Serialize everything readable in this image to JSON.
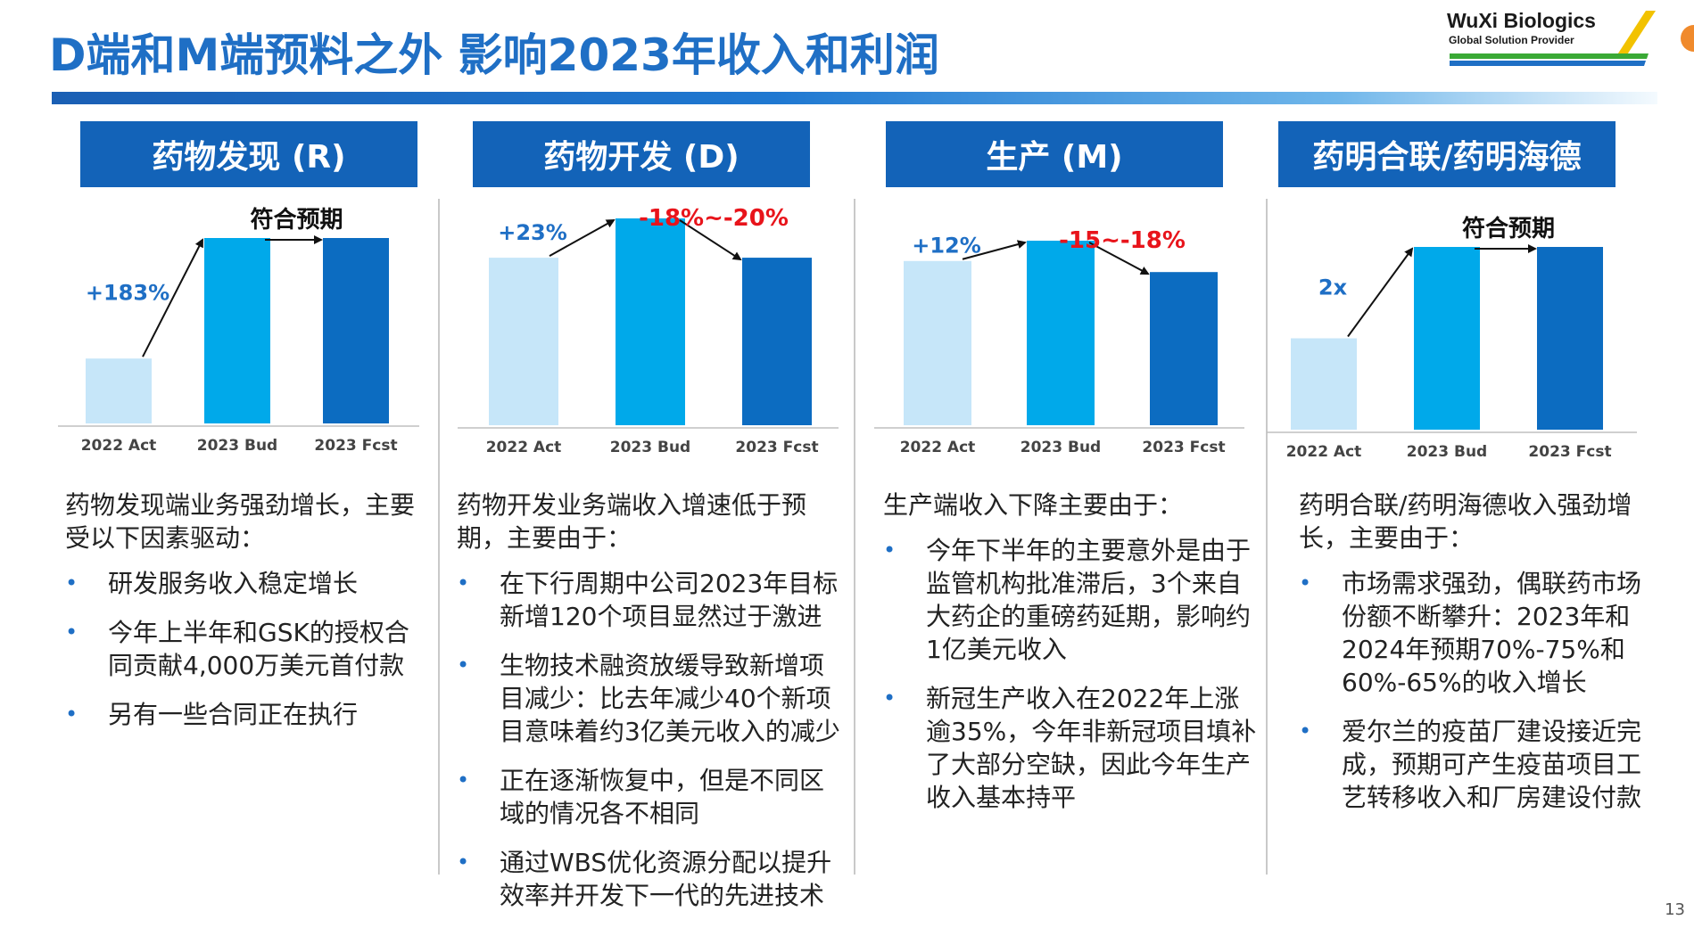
{
  "title": "D端和M端预料之外   影响2023年收入和利润",
  "logo": {
    "name": "WuXi Biologics",
    "tagline": "Global Solution Provider"
  },
  "page_number": "13",
  "colors": {
    "accent": "#1363b8",
    "bar_act": "#c6e6f9",
    "bar_bud": "#00a9ea",
    "bar_fcst": "#0c6cc1",
    "negative": "#e8141b",
    "positive": "#1f6fc5"
  },
  "panels": [
    {
      "header": "药物发现 (R)",
      "change1": "+183%",
      "change2": "符合预期",
      "description": {
        "lead": "药物发现端业务强劲增长，主要受以下因素驱动：",
        "bullets": [
          "研发服务收入稳定增长",
          "今年上半年和GSK的授权合同贡献4,000万美元首付款",
          "另有一些合同正在执行"
        ]
      }
    },
    {
      "header": "药物开发 (D)",
      "change1": "+23%",
      "change2": "-18%~-20%",
      "description": {
        "lead": "药物开发业务端收入增速低于预期，主要由于：",
        "bullets": [
          "在下行周期中公司2023年目标新增120个项目显然过于激进",
          "生物技术融资放缓导致新增项目减少：比去年减少40个新项目意味着约3亿美元收入的减少",
          "正在逐渐恢复中，但是不同区域的情况各不相同",
          "通过WBS优化资源分配以提升效率并开发下一代的先进技术"
        ]
      }
    },
    {
      "header": "生产 (M)",
      "change1": "+12%",
      "change2": "-15~-18%",
      "description": {
        "lead": "生产端收入下降主要由于：",
        "bullets": [
          "今年下半年的主要意外是由于监管机构批准滞后，3个来自大药企的重磅药延期，影响约1亿美元收入",
          "新冠生产收入在2022年上涨逾35%，今年非新冠项目填补了大部分空缺，因此今年生产收入基本持平"
        ]
      }
    },
    {
      "header": "药明合联/药明海德",
      "change1": "2x",
      "change2": "符合预期",
      "description": {
        "lead": "药明合联/药明海德收入强劲增长，主要由于：",
        "bullets": [
          "市场需求强劲，偶联药市场份额不断攀升：2023年和2024年预期70%-75%和60%-65%的收入增长",
          "爱尔兰的疫苗厂建设接近完成，预期可产生疫苗项目工艺转移收入和厂房建设付款"
        ]
      }
    }
  ],
  "chart_data": [
    {
      "type": "bar",
      "categories": [
        "2022 Act",
        "2023 Bud",
        "2023 Fcst"
      ],
      "values": [
        35,
        100,
        100
      ],
      "ylim": [
        0,
        100
      ]
    },
    {
      "type": "bar",
      "categories": [
        "2022 Act",
        "2023 Bud",
        "2023 Fcst"
      ],
      "values": [
        81,
        100,
        81
      ],
      "ylim": [
        0,
        100
      ]
    },
    {
      "type": "bar",
      "categories": [
        "2022 Act",
        "2023 Bud",
        "2023 Fcst"
      ],
      "values": [
        89,
        100,
        83
      ],
      "ylim": [
        0,
        100
      ]
    },
    {
      "type": "bar",
      "categories": [
        "2022 Act",
        "2023 Bud",
        "2023 Fcst"
      ],
      "values": [
        50,
        100,
        100
      ],
      "ylim": [
        0,
        100
      ]
    }
  ]
}
